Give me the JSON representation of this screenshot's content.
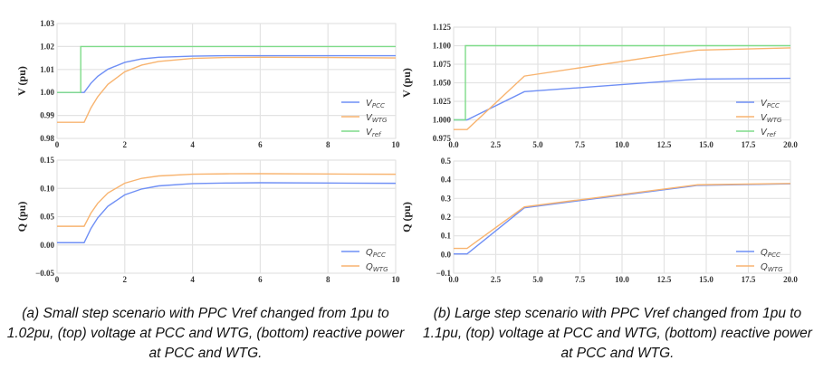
{
  "chart_data": [
    {
      "type": "line",
      "panel": "a-top",
      "ylabel": "V (pu)",
      "xlim": [
        0,
        10
      ],
      "ylim": [
        0.98,
        1.03
      ],
      "xticks": [
        "0",
        "2",
        "4",
        "6",
        "8",
        "10"
      ],
      "xtick_values": [
        0,
        2,
        4,
        6,
        8,
        10
      ],
      "yticks": [
        "0.98",
        "0.99",
        "1.00",
        "1.01",
        "1.02",
        "1.03"
      ],
      "ytick_values": [
        0.98,
        0.99,
        1.0,
        1.01,
        1.02,
        1.03
      ],
      "grid": true,
      "legend": "bottom-right",
      "series": [
        {
          "name": "V",
          "sub": "PCC",
          "color": "#6f8ff5",
          "x": [
            0,
            0.8,
            1,
            1.2,
            1.5,
            2,
            2.5,
            3,
            4,
            5,
            6,
            8,
            10
          ],
          "y": [
            1.0,
            1.0,
            1.004,
            1.007,
            1.0101,
            1.0131,
            1.0146,
            1.0153,
            1.0158,
            1.016,
            1.016,
            1.016,
            1.016
          ]
        },
        {
          "name": "V",
          "sub": "WTG",
          "color": "#f8b470",
          "x": [
            0,
            0.8,
            1,
            1.2,
            1.5,
            2,
            2.5,
            3,
            4,
            5,
            6,
            8,
            10
          ],
          "y": [
            0.987,
            0.987,
            0.9933,
            0.9981,
            1.0035,
            1.009,
            1.0119,
            1.0135,
            1.0148,
            1.0152,
            1.0153,
            1.0152,
            1.015
          ]
        },
        {
          "name": "V",
          "sub": "ref",
          "color": "#7fdc8a",
          "x": [
            0,
            0.7,
            0.7,
            10
          ],
          "y": [
            1.0,
            1.0,
            1.02,
            1.02
          ]
        }
      ]
    },
    {
      "type": "line",
      "panel": "b-top",
      "ylabel": "V (pu)",
      "xlim": [
        0,
        20
      ],
      "ylim": [
        0.975,
        1.125
      ],
      "xticks": [
        "0.0",
        "2.5",
        "5.0",
        "7.5",
        "10.0",
        "12.5",
        "15.0",
        "17.5",
        "20.0"
      ],
      "xtick_values": [
        0,
        2.5,
        5,
        7.5,
        10,
        12.5,
        15,
        17.5,
        20
      ],
      "yticks": [
        "0.975",
        "1.000",
        "1.025",
        "1.050",
        "1.075",
        "1.100",
        "1.125"
      ],
      "ytick_values": [
        0.975,
        1.0,
        1.025,
        1.05,
        1.075,
        1.1,
        1.125
      ],
      "grid": true,
      "legend": "bottom-right",
      "series": [
        {
          "name": "V",
          "sub": "PCC",
          "color": "#6f8ff5",
          "x": [
            0,
            0.8,
            4.2,
            14.5,
            20
          ],
          "y": [
            1.0,
            1.0,
            1.038,
            1.055,
            1.056
          ]
        },
        {
          "name": "V",
          "sub": "WTG",
          "color": "#f8b470",
          "x": [
            0,
            0.8,
            4.2,
            14.5,
            20
          ],
          "y": [
            0.987,
            0.987,
            1.059,
            1.094,
            1.097
          ]
        },
        {
          "name": "V",
          "sub": "ref",
          "color": "#7fdc8a",
          "x": [
            0,
            0.7,
            0.7,
            20
          ],
          "y": [
            1.0,
            1.0,
            1.1,
            1.1
          ]
        }
      ]
    },
    {
      "type": "line",
      "panel": "a-bottom",
      "ylabel": "Q (pu)",
      "xlim": [
        0,
        10
      ],
      "ylim": [
        -0.05,
        0.15
      ],
      "xticks": [
        "0",
        "2",
        "4",
        "6",
        "8",
        "10"
      ],
      "xtick_values": [
        0,
        2,
        4,
        6,
        8,
        10
      ],
      "yticks": [
        "−0.05",
        "0.00",
        "0.05",
        "0.10",
        "0.15"
      ],
      "ytick_values": [
        -0.05,
        0,
        0.05,
        0.1,
        0.15
      ],
      "grid": true,
      "legend": "bottom-right",
      "series": [
        {
          "name": "Q",
          "sub": "PCC",
          "color": "#6f8ff5",
          "x": [
            0,
            0.8,
            1,
            1.2,
            1.5,
            2,
            2.5,
            3,
            4,
            5,
            6,
            8,
            10
          ],
          "y": [
            0.004,
            0.004,
            0.0288,
            0.0478,
            0.0683,
            0.0886,
            0.099,
            0.1044,
            0.1085,
            0.1095,
            0.11,
            0.1095,
            0.109
          ]
        },
        {
          "name": "Q",
          "sub": "WTG",
          "color": "#f8b470",
          "x": [
            0,
            0.8,
            1,
            1.2,
            1.5,
            2,
            2.5,
            3,
            4,
            5,
            6,
            8,
            10
          ],
          "y": [
            0.033,
            0.033,
            0.0562,
            0.0735,
            0.0918,
            0.1092,
            0.1178,
            0.122,
            0.1251,
            0.1258,
            0.126,
            0.1255,
            0.125
          ]
        }
      ]
    },
    {
      "type": "line",
      "panel": "b-bottom",
      "ylabel": "Q (pu)",
      "xlim": [
        0,
        20
      ],
      "ylim": [
        -0.1,
        0.5
      ],
      "xticks": [
        "0.0",
        "2.5",
        "5.0",
        "7.5",
        "10.0",
        "12.5",
        "15.0",
        "17.5",
        "20.0"
      ],
      "xtick_values": [
        0,
        2.5,
        5,
        7.5,
        10,
        12.5,
        15,
        17.5,
        20
      ],
      "yticks": [
        "−0.1",
        "0.0",
        "0.1",
        "0.2",
        "0.3",
        "0.4",
        "0.5"
      ],
      "ytick_values": [
        -0.1,
        0,
        0.1,
        0.2,
        0.3,
        0.4,
        0.5
      ],
      "grid": true,
      "legend": "bottom-right",
      "series": [
        {
          "name": "Q",
          "sub": "PCC",
          "color": "#6f8ff5",
          "x": [
            0,
            0.8,
            4.2,
            14.5,
            20
          ],
          "y": [
            0.003,
            0.003,
            0.25,
            0.37,
            0.378
          ]
        },
        {
          "name": "Q",
          "sub": "WTG",
          "color": "#f8b470",
          "x": [
            0,
            0.8,
            4.2,
            14.5,
            20
          ],
          "y": [
            0.033,
            0.033,
            0.255,
            0.373,
            0.38
          ]
        }
      ]
    }
  ],
  "captions": {
    "a": "(a) Small step scenario with PPC Vref changed from 1pu to 1.02pu, (top) voltage at PCC and WTG, (bottom) reactive power at PCC and WTG.",
    "b": "(b) Large step scenario with PPC Vref changed from 1pu to 1.1pu, (top) voltage at PCC and WTG, (bottom) reactive power at PCC and WTG."
  }
}
